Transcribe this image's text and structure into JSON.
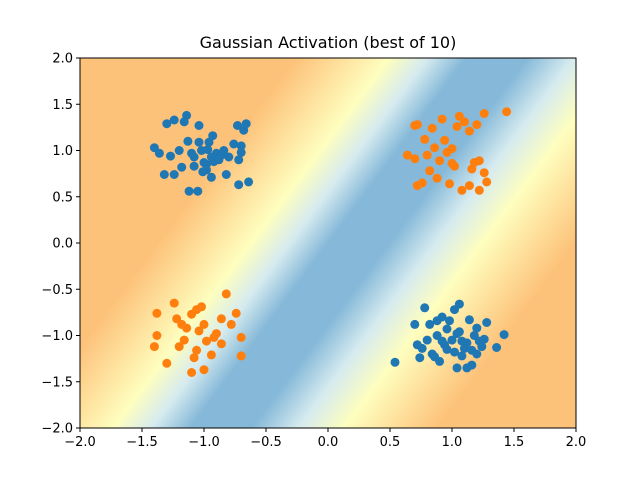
{
  "chart_data": {
    "type": "scatter",
    "title": "Gaussian Activation (best of 10)",
    "xlabel": "",
    "ylabel": "",
    "xlim": [
      -2.0,
      2.0
    ],
    "ylim": [
      -2.0,
      2.0
    ],
    "xticks": [
      "−2.0",
      "−1.5",
      "−1.0",
      "−0.5",
      "0.0",
      "0.5",
      "1.0",
      "1.5",
      "2.0"
    ],
    "xtick_values": [
      -2.0,
      -1.5,
      -1.0,
      -0.5,
      0.0,
      0.5,
      1.0,
      1.5,
      2.0
    ],
    "yticks": [
      "−2.0",
      "−1.5",
      "−1.0",
      "−0.5",
      "0.0",
      "0.5",
      "1.0",
      "1.5",
      "2.0"
    ],
    "ytick_values": [
      -2.0,
      -1.5,
      -1.0,
      -0.5,
      0.0,
      0.5,
      1.0,
      1.5,
      2.0
    ],
    "grid": false,
    "background": {
      "type": "decision-surface",
      "boundary": "blue band along the anti-diagonal x + y = 0, fading through yellow to orange away from it",
      "colors": {
        "center": "#86b9d9",
        "mid": "#fefebe",
        "outer": "#fdc27a"
      }
    },
    "series": [
      {
        "color": "#1f77b4",
        "points": [
          [
            -1.4,
            1.03
          ],
          [
            -1.36,
            0.97
          ],
          [
            -1.3,
            1.29
          ],
          [
            -1.24,
            1.33
          ],
          [
            -1.27,
            0.94
          ],
          [
            -1.2,
            1.0
          ],
          [
            -1.13,
            1.1
          ],
          [
            -1.1,
            0.97
          ],
          [
            -1.08,
            0.93
          ],
          [
            -1.04,
            1.09
          ],
          [
            -1.0,
            0.87
          ],
          [
            -0.98,
            0.85
          ],
          [
            -0.96,
            1.09
          ],
          [
            -0.93,
            1.16
          ],
          [
            -0.9,
            0.97
          ],
          [
            -0.92,
            0.88
          ],
          [
            -0.86,
            0.95
          ],
          [
            -0.84,
            1.0
          ],
          [
            -0.8,
            0.93
          ],
          [
            -0.76,
            1.07
          ],
          [
            -0.73,
            1.27
          ],
          [
            -0.68,
            1.22
          ],
          [
            -0.66,
            1.29
          ],
          [
            -0.7,
            0.98
          ],
          [
            -0.72,
            0.9
          ],
          [
            -1.04,
            1.27
          ],
          [
            -1.14,
            1.38
          ],
          [
            -1.18,
            0.82
          ],
          [
            -1.08,
            0.83
          ],
          [
            -0.98,
            0.79
          ],
          [
            -1.16,
            1.31
          ],
          [
            -1.32,
            0.74
          ],
          [
            -1.24,
            0.74
          ],
          [
            -1.12,
            0.56
          ],
          [
            -1.05,
            0.56
          ],
          [
            -0.94,
            0.71
          ],
          [
            -0.82,
            0.74
          ],
          [
            -0.72,
            0.63
          ],
          [
            -0.64,
            0.66
          ],
          [
            -0.7,
            1.05
          ],
          [
            -1.02,
            1.0
          ],
          [
            -0.94,
            0.93
          ],
          [
            -0.88,
            0.9
          ],
          [
            -1.01,
            0.77
          ],
          [
            -0.97,
            1.01
          ]
        ]
      },
      {
        "color": "#ff7f0e",
        "points": [
          [
            0.64,
            0.95
          ],
          [
            0.7,
            1.27
          ],
          [
            0.72,
            1.28
          ],
          [
            0.78,
            1.12
          ],
          [
            0.8,
            0.95
          ],
          [
            0.84,
            1.24
          ],
          [
            0.86,
            1.03
          ],
          [
            0.9,
            0.89
          ],
          [
            0.94,
            1.11
          ],
          [
            0.96,
            0.98
          ],
          [
            1.0,
            0.86
          ],
          [
            1.02,
            0.83
          ],
          [
            1.04,
            1.26
          ],
          [
            1.06,
            1.37
          ],
          [
            1.1,
            1.31
          ],
          [
            1.14,
            1.21
          ],
          [
            1.16,
            0.8
          ],
          [
            1.18,
            0.87
          ],
          [
            1.22,
            0.89
          ],
          [
            1.26,
            0.76
          ],
          [
            1.28,
            0.66
          ],
          [
            1.26,
            1.4
          ],
          [
            1.44,
            1.42
          ],
          [
            0.72,
            0.62
          ],
          [
            0.76,
            0.65
          ],
          [
            0.88,
            0.7
          ],
          [
            0.98,
            0.64
          ],
          [
            1.08,
            0.57
          ],
          [
            1.14,
            0.62
          ],
          [
            1.22,
            0.57
          ],
          [
            0.7,
            0.91
          ],
          [
            0.82,
            0.78
          ],
          [
            1.2,
            1.28
          ],
          [
            1.0,
            1.02
          ],
          [
            0.92,
            1.34
          ],
          [
            -1.38,
            -0.76
          ],
          [
            -1.38,
            -1.0
          ],
          [
            -1.4,
            -1.12
          ],
          [
            -1.3,
            -1.3
          ],
          [
            -1.24,
            -0.65
          ],
          [
            -1.22,
            -0.82
          ],
          [
            -1.18,
            -0.88
          ],
          [
            -1.14,
            -0.92
          ],
          [
            -1.1,
            -0.77
          ],
          [
            -1.06,
            -0.72
          ],
          [
            -1.04,
            -0.95
          ],
          [
            -1.02,
            -0.69
          ],
          [
            -1.0,
            -0.88
          ],
          [
            -0.98,
            -1.06
          ],
          [
            -0.94,
            -1.21
          ],
          [
            -0.9,
            -0.98
          ],
          [
            -0.86,
            -1.09
          ],
          [
            -0.82,
            -0.55
          ],
          [
            -0.78,
            -0.88
          ],
          [
            -0.74,
            -0.76
          ],
          [
            -0.7,
            -1.02
          ],
          [
            -0.7,
            -1.22
          ],
          [
            -1.1,
            -1.4
          ],
          [
            -1.0,
            -1.37
          ],
          [
            -1.06,
            -1.16
          ],
          [
            -1.16,
            -1.05
          ],
          [
            -1.2,
            -1.12
          ],
          [
            -1.08,
            -1.24
          ],
          [
            -0.92,
            -1.02
          ],
          [
            -0.86,
            -0.82
          ]
        ]
      },
      {
        "color": "#1f77b4",
        "points": [
          [
            0.54,
            -1.29
          ],
          [
            0.7,
            -0.88
          ],
          [
            0.72,
            -1.1
          ],
          [
            0.74,
            -1.24
          ],
          [
            0.78,
            -0.7
          ],
          [
            0.82,
            -0.88
          ],
          [
            0.84,
            -1.2
          ],
          [
            0.88,
            -1.0
          ],
          [
            0.9,
            -1.28
          ],
          [
            0.92,
            -0.8
          ],
          [
            0.96,
            -1.15
          ],
          [
            1.0,
            -1.05
          ],
          [
            1.02,
            -0.72
          ],
          [
            1.04,
            -1.35
          ],
          [
            1.06,
            -0.96
          ],
          [
            1.08,
            -1.22
          ],
          [
            1.12,
            -1.08
          ],
          [
            1.14,
            -0.83
          ],
          [
            1.16,
            -1.32
          ],
          [
            1.18,
            -1.0
          ],
          [
            1.2,
            -0.92
          ],
          [
            1.24,
            -1.12
          ],
          [
            1.26,
            -1.04
          ],
          [
            1.28,
            -0.86
          ],
          [
            1.36,
            -1.13
          ],
          [
            1.42,
            -0.99
          ],
          [
            1.12,
            -1.35
          ],
          [
            1.06,
            -0.66
          ],
          [
            0.8,
            -1.05
          ],
          [
            0.94,
            -1.1
          ],
          [
            0.96,
            -0.93
          ],
          [
            1.02,
            -1.18
          ],
          [
            0.98,
            -0.84
          ],
          [
            1.1,
            -1.14
          ],
          [
            0.86,
            -1.23
          ],
          [
            0.76,
            -1.14
          ],
          [
            1.08,
            -1.06
          ],
          [
            1.16,
            -1.16
          ],
          [
            0.92,
            -1.06
          ],
          [
            1.2,
            -1.2
          ],
          [
            1.04,
            -0.98
          ],
          [
            0.88,
            -0.84
          ],
          [
            1.22,
            -1.06
          ]
        ]
      }
    ]
  }
}
